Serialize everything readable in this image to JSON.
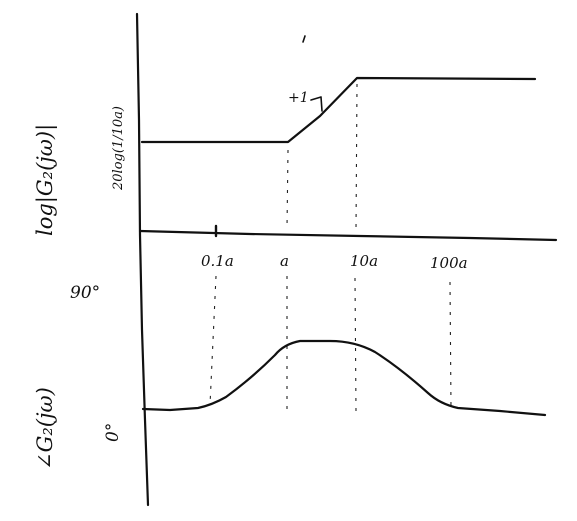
{
  "magnitude_plot": {
    "ylabel": "log|G₂(jω)|",
    "level_label": "20log(1/10a)",
    "slope_label": "+1"
  },
  "frequency_axis": {
    "ticks": [
      "0.1a",
      "a",
      "10a",
      "100a"
    ]
  },
  "phase_plot": {
    "ylabel": "∠G₂(jω)",
    "ticks": [
      "90°",
      "0°"
    ]
  },
  "chart_data": [
    {
      "type": "line",
      "description_of_axes": "magnitude (asymptotic Bode sketch)",
      "x": [
        "a",
        "10a"
      ],
      "ylabel": "log|G₂(jω)|",
      "slope_between_a_and_10a": "+1"
    },
    {
      "type": "line",
      "ylabel": "∠G₂(jω)",
      "x_ticks": [
        "0.1a",
        "a",
        "10a",
        "100a"
      ],
      "y_ticks": [
        "90°",
        "0°"
      ]
    }
  ]
}
